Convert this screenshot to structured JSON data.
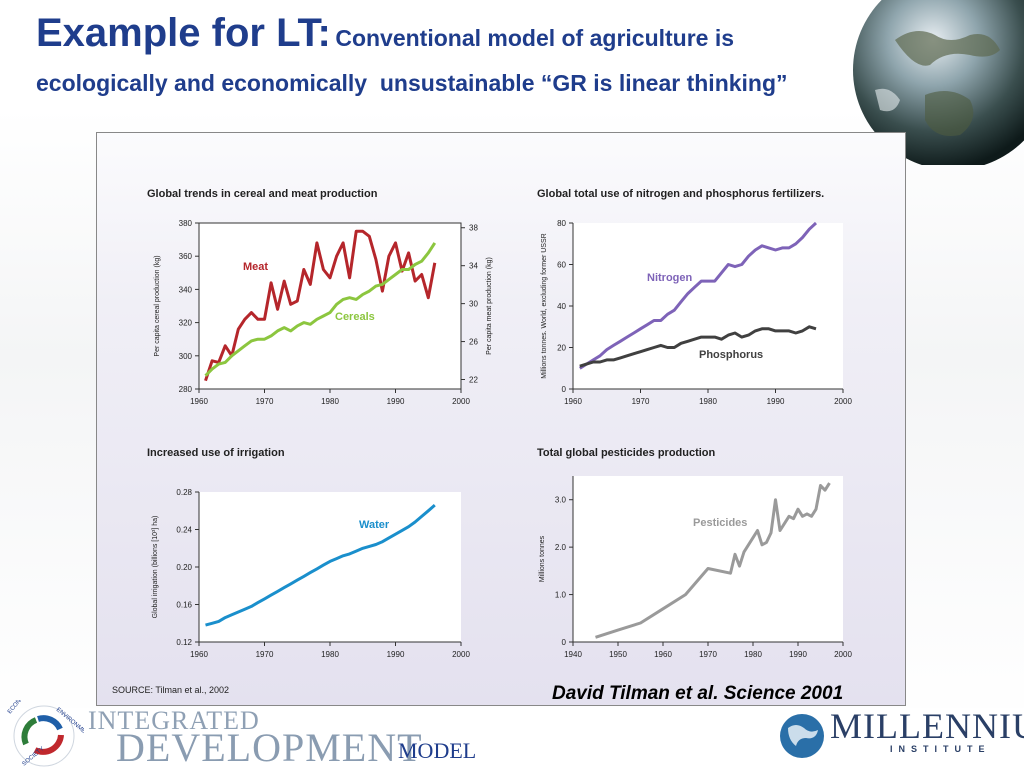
{
  "slide": {
    "title_main": "Example for LT:",
    "title_rest": "Conventional model of agriculture is",
    "title_line2": "ecologically and economically  unsustainable “GR is linear thinking”",
    "credit": "David Tilman et al. Science 2001",
    "source": "SOURCE: Tilman et al., 2002",
    "footer_left": {
      "line1": "INTEGRATED",
      "line2": "DEVELOPMENT",
      "line3": "MODEL",
      "ring_words": [
        "ECONOMY",
        "ENVIRONMENT",
        "SOCIETY"
      ]
    },
    "footer_right": {
      "line1": "MILLENNIUM",
      "line2": "INSTITUTE"
    },
    "colors": {
      "title": "#1f3d8c",
      "meat": "#b5262b",
      "cereals": "#8cc63f",
      "nitrogen": "#7e63b8",
      "phosphorus": "#404040",
      "water": "#1a8fcc",
      "pesticides": "#9a9a9a"
    }
  },
  "chart_data": [
    {
      "type": "line",
      "title": "Global trends in cereal and meat production",
      "xlabel": "",
      "ylabel": "Per capita cereal production (kg)",
      "y2label": "Per capita meat production (kg)",
      "xlim": [
        1960,
        2000
      ],
      "ylim": [
        280,
        380
      ],
      "y2lim": [
        21,
        38.5
      ],
      "xticks": [
        1960,
        1970,
        1980,
        1990,
        2000
      ],
      "yticks": [
        280,
        300,
        320,
        340,
        360,
        380
      ],
      "y2ticks": [
        22,
        26,
        30,
        34,
        38
      ],
      "series": [
        {
          "name": "Meat",
          "axis": "left",
          "x": [
            1961,
            1962,
            1963,
            1964,
            1965,
            1966,
            1967,
            1968,
            1969,
            1970,
            1971,
            1972,
            1973,
            1974,
            1975,
            1976,
            1977,
            1978,
            1979,
            1980,
            1981,
            1982,
            1983,
            1984,
            1985,
            1986,
            1987,
            1988,
            1989,
            1990,
            1991,
            1992,
            1993,
            1994,
            1995,
            1996
          ],
          "values": [
            285,
            297,
            296,
            306,
            300,
            316,
            322,
            326,
            322,
            322,
            344,
            328,
            345,
            331,
            333,
            352,
            343,
            368,
            352,
            347,
            360,
            368,
            347,
            375,
            375,
            372,
            358,
            339,
            360,
            368,
            351,
            362,
            345,
            349,
            335,
            356
          ]
        },
        {
          "name": "Cereals",
          "axis": "left",
          "x": [
            1961,
            1962,
            1963,
            1964,
            1965,
            1966,
            1967,
            1968,
            1969,
            1970,
            1971,
            1972,
            1973,
            1974,
            1975,
            1976,
            1977,
            1978,
            1979,
            1980,
            1981,
            1982,
            1983,
            1984,
            1985,
            1986,
            1987,
            1988,
            1989,
            1990,
            1991,
            1992,
            1993,
            1994,
            1995,
            1996
          ],
          "values": [
            288,
            292,
            295,
            296,
            300,
            303,
            306,
            309,
            310,
            310,
            312,
            315,
            317,
            315,
            318,
            320,
            319,
            322,
            324,
            326,
            331,
            334,
            335,
            334,
            337,
            339,
            342,
            343,
            346,
            349,
            352,
            352,
            355,
            357,
            362,
            368
          ]
        }
      ]
    },
    {
      "type": "line",
      "title": "Global total use of nitrogen and phosphorus fertilizers.",
      "xlabel": "",
      "ylabel": "Millions tonnes. World, excluding former USSR",
      "xlim": [
        1960,
        2000
      ],
      "ylim": [
        0,
        80
      ],
      "xticks": [
        1960,
        1970,
        1980,
        1990,
        2000
      ],
      "yticks": [
        0,
        20,
        40,
        60,
        80
      ],
      "series": [
        {
          "name": "Nitrogen",
          "x": [
            1961,
            1962,
            1963,
            1964,
            1965,
            1966,
            1967,
            1968,
            1969,
            1970,
            1971,
            1972,
            1973,
            1974,
            1975,
            1976,
            1977,
            1978,
            1979,
            1980,
            1981,
            1982,
            1983,
            1984,
            1985,
            1986,
            1987,
            1988,
            1989,
            1990,
            1991,
            1992,
            1993,
            1994,
            1995,
            1996
          ],
          "values": [
            10,
            12,
            14,
            16,
            19,
            21,
            23,
            25,
            27,
            29,
            31,
            33,
            33,
            36,
            38,
            42,
            46,
            49,
            52,
            52,
            52,
            56,
            60,
            59,
            60,
            64,
            67,
            69,
            68,
            67,
            68,
            68,
            70,
            73,
            77,
            80
          ]
        },
        {
          "name": "Phosphorus",
          "x": [
            1961,
            1962,
            1963,
            1964,
            1965,
            1966,
            1967,
            1968,
            1969,
            1970,
            1971,
            1972,
            1973,
            1974,
            1975,
            1976,
            1977,
            1978,
            1979,
            1980,
            1981,
            1982,
            1983,
            1984,
            1985,
            1986,
            1987,
            1988,
            1989,
            1990,
            1991,
            1992,
            1993,
            1994,
            1995,
            1996
          ],
          "values": [
            11,
            12,
            13,
            13,
            14,
            14,
            15,
            16,
            17,
            18,
            19,
            20,
            21,
            20,
            20,
            22,
            23,
            24,
            25,
            25,
            25,
            24,
            26,
            27,
            25,
            26,
            28,
            29,
            29,
            28,
            28,
            28,
            27,
            28,
            30,
            29
          ]
        }
      ]
    },
    {
      "type": "line",
      "title": "Increased use of irrigation",
      "xlabel": "",
      "ylabel": "Global irrigation (billions [10³] ha)",
      "xlim": [
        1960,
        2000
      ],
      "ylim": [
        0.12,
        0.28
      ],
      "xticks": [
        1960,
        1970,
        1980,
        1990,
        2000
      ],
      "yticks": [
        0.12,
        0.16,
        0.2,
        0.24,
        0.28
      ],
      "series": [
        {
          "name": "Water",
          "x": [
            1961,
            1962,
            1963,
            1964,
            1965,
            1966,
            1967,
            1968,
            1969,
            1970,
            1971,
            1972,
            1973,
            1974,
            1975,
            1976,
            1977,
            1978,
            1979,
            1980,
            1981,
            1982,
            1983,
            1984,
            1985,
            1986,
            1987,
            1988,
            1989,
            1990,
            1991,
            1992,
            1993,
            1994,
            1995,
            1996
          ],
          "values": [
            0.138,
            0.14,
            0.142,
            0.146,
            0.149,
            0.152,
            0.155,
            0.158,
            0.162,
            0.166,
            0.17,
            0.174,
            0.178,
            0.182,
            0.186,
            0.19,
            0.194,
            0.198,
            0.202,
            0.206,
            0.209,
            0.212,
            0.214,
            0.217,
            0.22,
            0.222,
            0.224,
            0.227,
            0.231,
            0.235,
            0.239,
            0.243,
            0.248,
            0.254,
            0.26,
            0.266
          ]
        }
      ]
    },
    {
      "type": "line",
      "title": "Total global pesticides production",
      "xlabel": "",
      "ylabel": "Millions tonnes",
      "xlim": [
        1940,
        2000
      ],
      "ylim": [
        0,
        3.5
      ],
      "xticks": [
        1940,
        1950,
        1960,
        1970,
        1980,
        1990,
        2000
      ],
      "yticks": [
        0,
        1.0,
        2.0,
        3.0
      ],
      "ytick_labels": [
        "0",
        "1.0",
        "2.0",
        "3.0"
      ],
      "series": [
        {
          "name": "Pesticides",
          "x": [
            1945,
            1950,
            1955,
            1960,
            1965,
            1970,
            1975,
            1976,
            1977,
            1978,
            1980,
            1981,
            1982,
            1983,
            1984,
            1985,
            1986,
            1987,
            1988,
            1989,
            1990,
            1991,
            1992,
            1993,
            1994,
            1995,
            1996,
            1997
          ],
          "values": [
            0.1,
            0.25,
            0.4,
            0.7,
            1.0,
            1.55,
            1.45,
            1.85,
            1.6,
            1.9,
            2.2,
            2.35,
            2.05,
            2.1,
            2.3,
            3.0,
            2.35,
            2.5,
            2.65,
            2.6,
            2.8,
            2.65,
            2.7,
            2.65,
            2.8,
            3.3,
            3.2,
            3.35
          ]
        }
      ]
    }
  ]
}
